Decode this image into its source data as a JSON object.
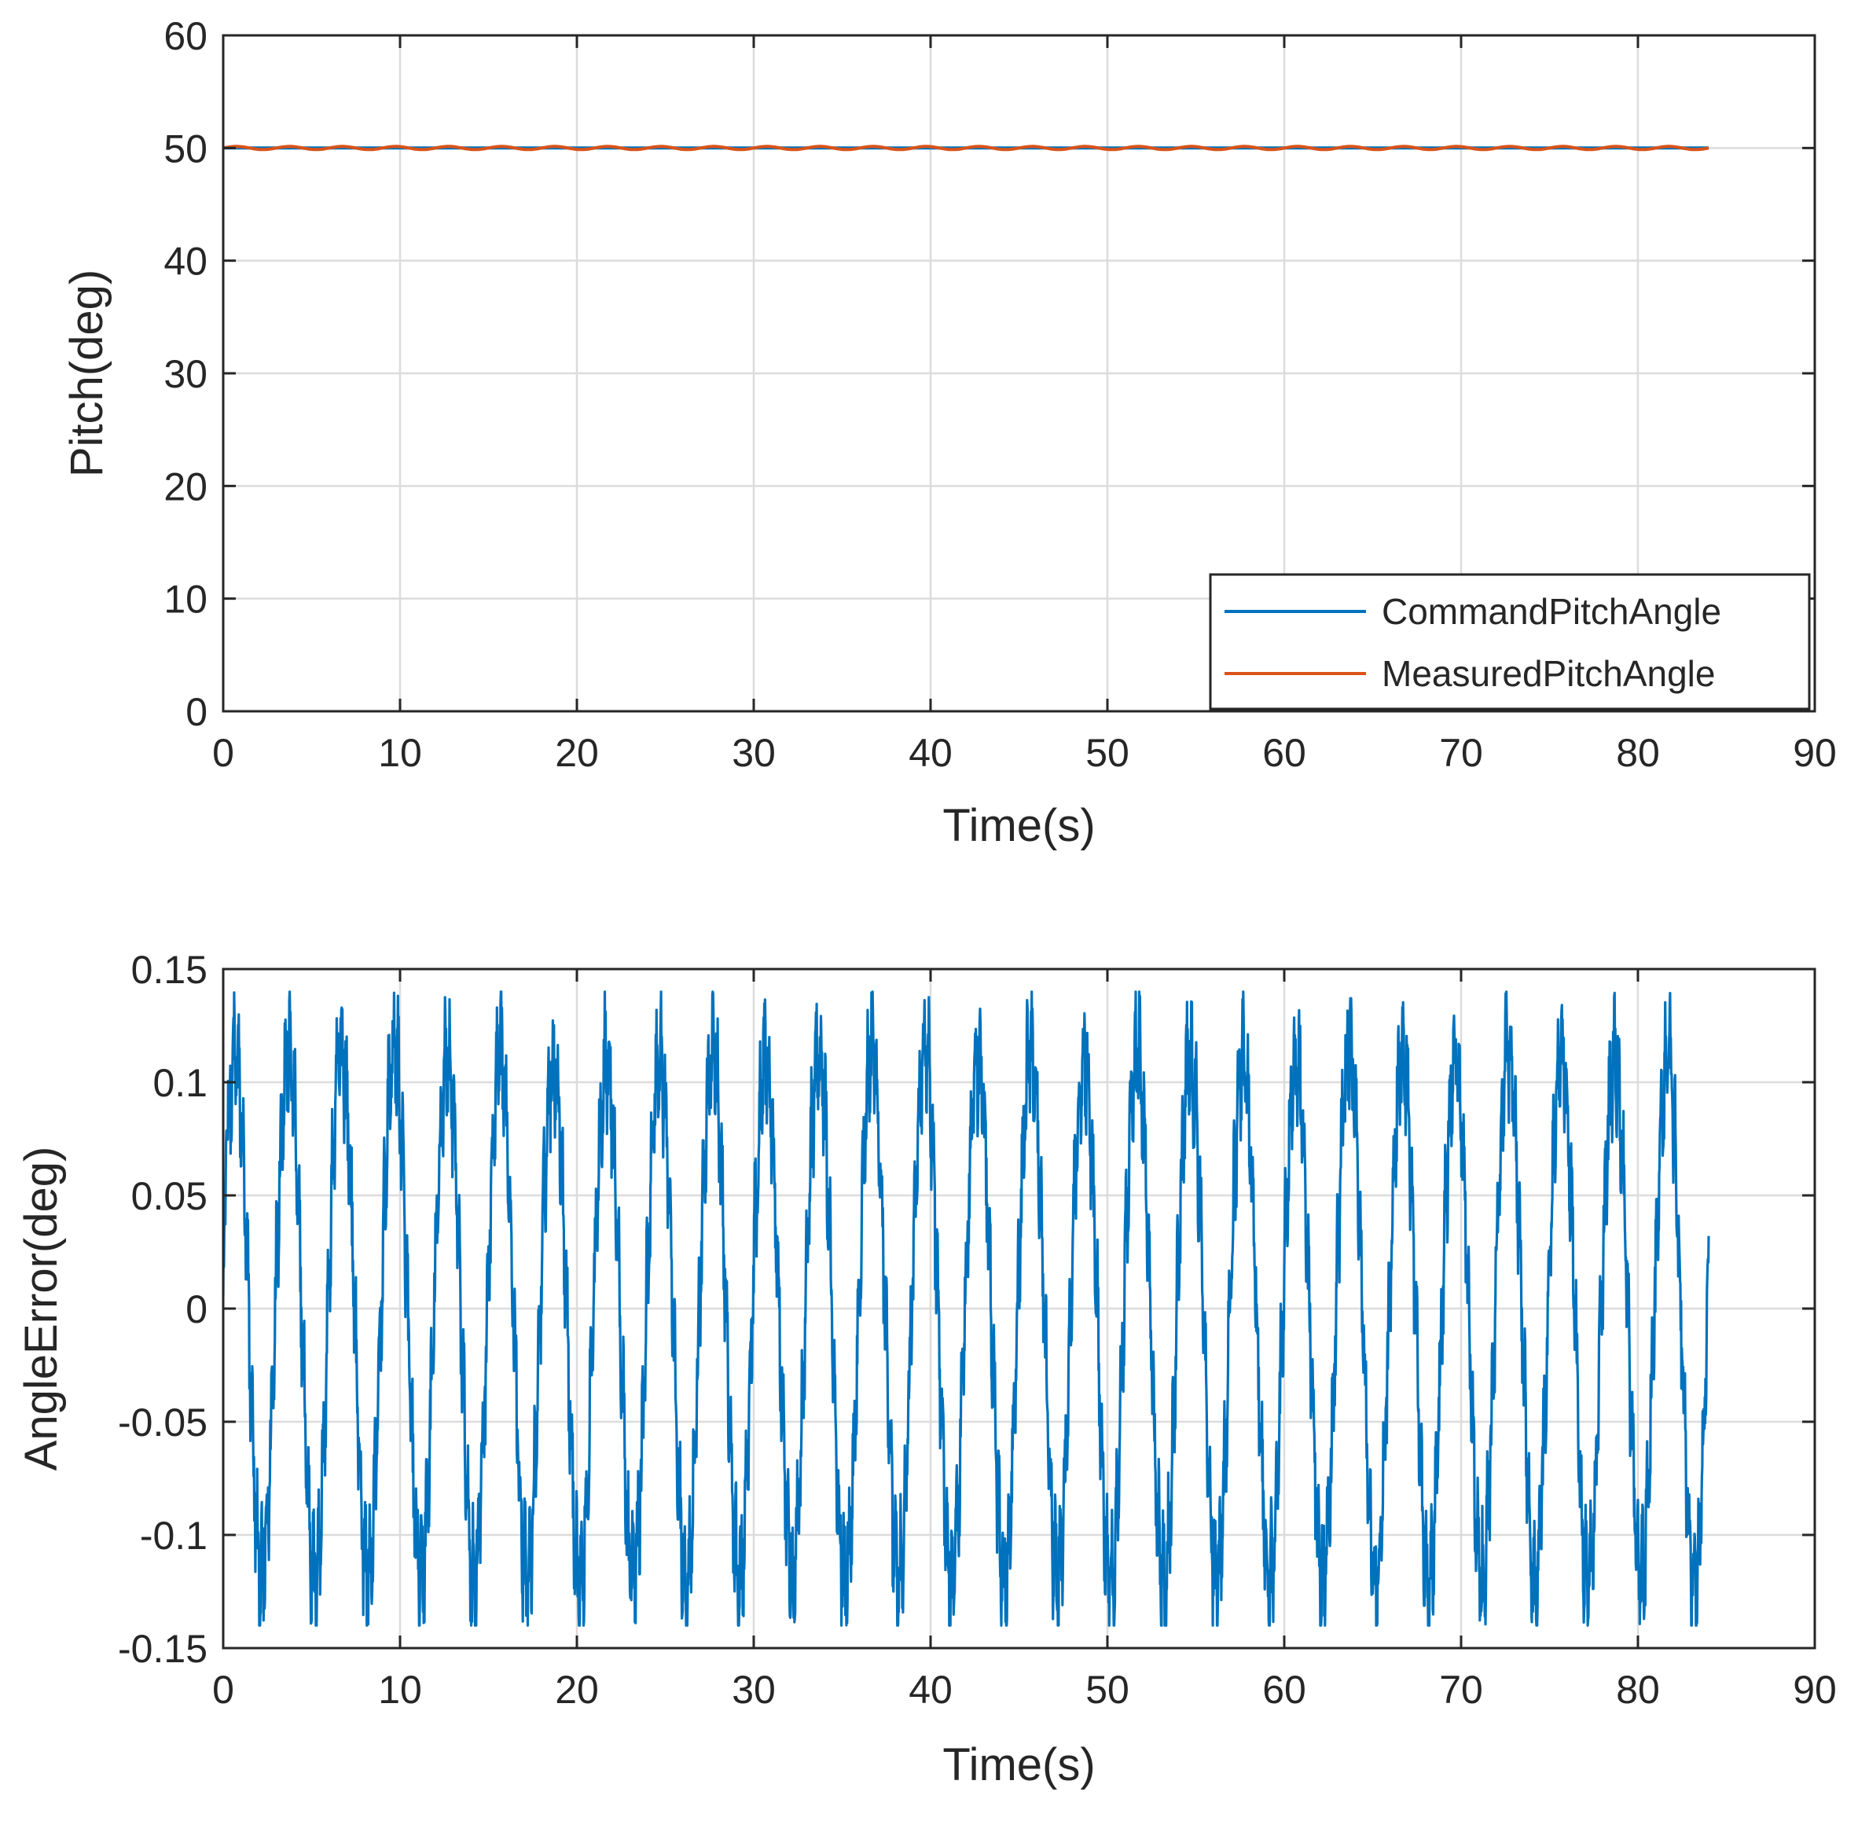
{
  "chart_data": [
    {
      "type": "line",
      "title": "",
      "xlabel": "Time(s)",
      "ylabel": "Pitch(deg)",
      "xlim": [
        0,
        90
      ],
      "ylim": [
        0,
        60
      ],
      "xticks": [
        0,
        10,
        20,
        30,
        40,
        50,
        60,
        70,
        80,
        90
      ],
      "yticks": [
        0,
        10,
        20,
        30,
        40,
        50,
        60
      ],
      "xtick_labels": [
        "0",
        "10",
        "20",
        "30",
        "40",
        "50",
        "60",
        "70",
        "80",
        "90"
      ],
      "ytick_labels": [
        "0",
        "10",
        "20",
        "30",
        "40",
        "50",
        "60"
      ],
      "grid": true,
      "legend_position": "bottom-right",
      "series": [
        {
          "name": "CommandPitchAngle",
          "color": "#0072BD",
          "x": [
            0,
            84
          ],
          "values": [
            50,
            50
          ]
        },
        {
          "name": "MeasuredPitchAngle",
          "color": "#D95319",
          "x": [
            0,
            84
          ],
          "values": [
            50,
            50
          ],
          "oscillation_amplitude": 0.14,
          "oscillation_period": 3
        }
      ]
    },
    {
      "type": "line",
      "title": "",
      "xlabel": "Time(s)",
      "ylabel": "AngleError(deg)",
      "xlim": [
        0,
        90
      ],
      "ylim": [
        -0.15,
        0.15
      ],
      "xticks": [
        0,
        10,
        20,
        30,
        40,
        50,
        60,
        70,
        80,
        90
      ],
      "yticks": [
        -0.15,
        -0.1,
        -0.05,
        0,
        0.05,
        0.1,
        0.15
      ],
      "xtick_labels": [
        "0",
        "10",
        "20",
        "30",
        "40",
        "50",
        "60",
        "70",
        "80",
        "90"
      ],
      "ytick_labels": [
        "-0.15",
        "-0.1",
        "-0.05",
        "0",
        "0.05",
        "0.1",
        "0.15"
      ],
      "grid": true,
      "series": [
        {
          "name": "AngleError",
          "color": "#0072BD",
          "x_start": 0,
          "x_end": 84,
          "period": 3,
          "peak_max": 0.135,
          "peak_min": -0.14,
          "approx_peak_values": [
            0.13,
            0.135,
            0.135,
            0.135,
            0.13,
            0.13,
            0.13,
            0.13,
            0.13,
            0.135,
            0.13,
            0.135,
            0.135,
            0.135,
            0.13,
            0.135,
            0.13,
            0.135,
            0.13,
            0.13,
            0.13,
            0.135,
            0.13,
            0.13,
            0.135,
            0.13,
            0.13,
            0.13
          ],
          "approx_trough_values": [
            -0.14,
            -0.14,
            -0.14,
            -0.14,
            -0.14,
            -0.14,
            -0.14,
            -0.14,
            -0.14,
            -0.14,
            -0.14,
            -0.14,
            -0.14,
            -0.14,
            -0.14,
            -0.14,
            -0.14,
            -0.14,
            -0.14,
            -0.14,
            -0.14,
            -0.14,
            -0.14,
            -0.14,
            -0.14,
            -0.14,
            -0.14,
            -0.14
          ]
        }
      ]
    }
  ]
}
